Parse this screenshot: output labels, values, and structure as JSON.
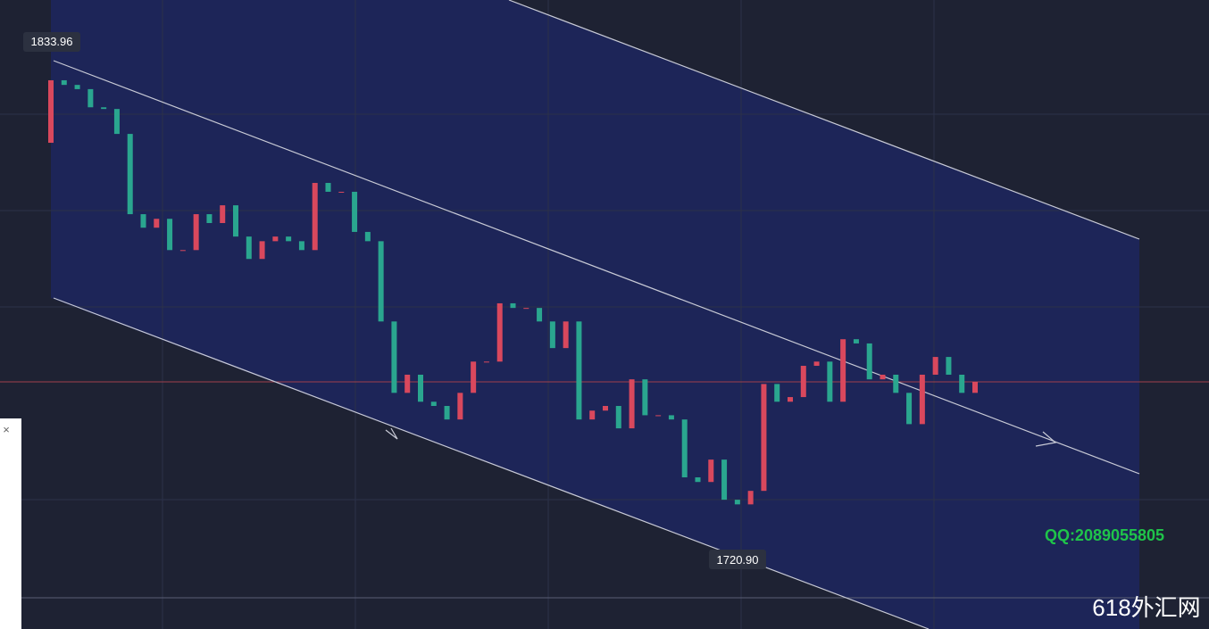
{
  "chart_data": {
    "type": "candlestick",
    "ylim": [
      1699.4,
      1848.3
    ],
    "up_color": "#d9485d",
    "down_color": "#2aa68f",
    "opens": [
      1814.5,
      1829.3,
      1828.2,
      1827.2,
      1822.9,
      1822.5,
      1816.6,
      1797.6,
      1794.4,
      1796.5,
      1789.1,
      1789.1,
      1797.6,
      1795.5,
      1799.7,
      1792.3,
      1787.0,
      1791.2,
      1792.3,
      1791.2,
      1789.1,
      1805.0,
      1802.9,
      1802.9,
      1793.4,
      1791.2,
      1772.2,
      1755.3,
      1759.6,
      1753.2,
      1752.2,
      1749.0,
      1755.3,
      1762.7,
      1762.7,
      1776.5,
      1775.4,
      1775.4,
      1772.2,
      1765.9,
      1772.2,
      1749.0,
      1751.1,
      1752.2,
      1746.9,
      1758.5,
      1750.0,
      1750.0,
      1749.0,
      1735.3,
      1734.2,
      1739.5,
      1730.0,
      1728.9,
      1732.1,
      1757.4,
      1753.2,
      1754.3,
      1761.7,
      1762.7,
      1753.2,
      1768.0,
      1767.0,
      1758.5,
      1759.6,
      1755.3,
      1747.9,
      1759.6,
      1763.8,
      1759.6,
      1755.3
    ],
    "closes": [
      1829.3,
      1828.2,
      1827.2,
      1822.9,
      1822.5,
      1816.6,
      1797.6,
      1794.4,
      1796.5,
      1789.1,
      1789.1,
      1797.6,
      1795.5,
      1799.7,
      1792.3,
      1787.0,
      1791.2,
      1792.3,
      1791.2,
      1789.1,
      1805.0,
      1802.9,
      1802.9,
      1793.4,
      1791.2,
      1772.2,
      1755.3,
      1759.6,
      1753.2,
      1752.2,
      1749.0,
      1755.3,
      1762.7,
      1762.7,
      1776.5,
      1775.4,
      1775.4,
      1772.2,
      1765.9,
      1772.2,
      1749.0,
      1751.1,
      1752.2,
      1746.9,
      1758.5,
      1750.0,
      1750.0,
      1749.0,
      1735.3,
      1734.2,
      1739.5,
      1730.0,
      1728.9,
      1732.1,
      1757.4,
      1753.2,
      1754.3,
      1761.7,
      1762.7,
      1753.2,
      1768.0,
      1767.0,
      1758.5,
      1759.6,
      1755.3,
      1747.9,
      1759.6,
      1763.8,
      1759.6,
      1755.3,
      1757.9
    ],
    "high_label": "1833.96",
    "low_label": "1720.90",
    "watermark": "QQ:2089055805",
    "site": "618外汇网"
  }
}
